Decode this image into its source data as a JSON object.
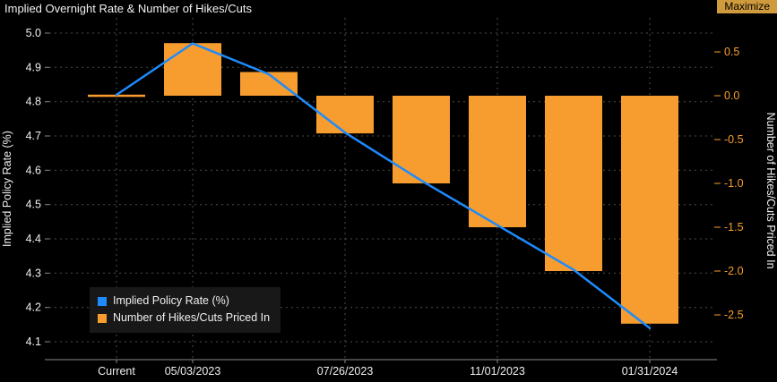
{
  "header": {
    "title": "Implied Overnight Rate & Number of Hikes/Cuts",
    "maximize_label": "Maximize"
  },
  "colors": {
    "background": "#000000",
    "line": "#1e8bfc",
    "bar": "#f79c2f",
    "grid": "#4d4d4d",
    "axis_text": "#f0f0f0",
    "right_axis_text": "#f79c2f",
    "axis_line": "#8a8a8a",
    "maximize_bg": "#d09b3c",
    "maximize_text": "#000000",
    "legend_bg": "#181818"
  },
  "chart_data": {
    "type": "line+bar",
    "title": "Implied Overnight Rate & Number of Hikes/Cuts",
    "categories": [
      "Current",
      "05/03/2023",
      "",
      "07/26/2023",
      "",
      "11/01/2023",
      "",
      "01/31/2024"
    ],
    "series": [
      {
        "name": "Implied Policy Rate (%)",
        "type": "line",
        "axis": "left",
        "color": "#1e8bfc",
        "values": [
          4.82,
          4.97,
          4.88,
          4.71,
          4.57,
          4.44,
          4.31,
          4.14
        ]
      },
      {
        "name": "Number of Hikes/Cuts Priced In",
        "type": "bar",
        "axis": "right",
        "color": "#f79c2f",
        "values": [
          0.0,
          0.6,
          0.27,
          -0.43,
          -1.0,
          -1.5,
          -2.0,
          -2.6
        ]
      }
    ],
    "left_axis": {
      "label": "Implied Policy Rate (%)",
      "ticks": [
        5.0,
        4.9,
        4.8,
        4.7,
        4.6,
        4.5,
        4.4,
        4.3,
        4.2,
        4.1
      ],
      "range": [
        4.05,
        5.04
      ]
    },
    "right_axis": {
      "label": "Number of Hikes/Cuts Priced In",
      "ticks": [
        0.5,
        0.0,
        -0.5,
        -1.0,
        -1.5,
        -2.0,
        -2.5
      ],
      "range": [
        -3.0,
        0.9
      ]
    },
    "grid": {
      "horizontal": true,
      "vertical": true,
      "style": "dotted"
    },
    "legend_position": "bottom-left-inside"
  }
}
